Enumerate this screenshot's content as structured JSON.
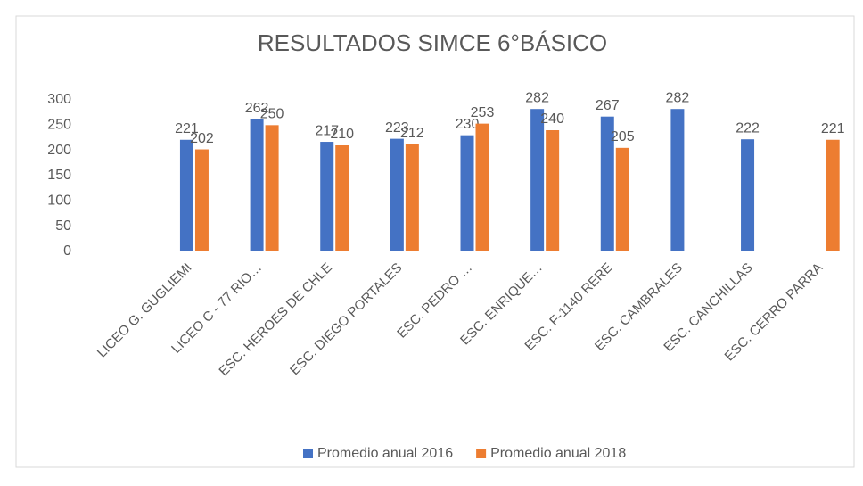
{
  "chart_data": {
    "type": "bar",
    "title": "RESULTADOS SIMCE 6°BÁSICO",
    "categories": [
      null,
      "LICEO G. GUGLIEMI",
      "LICEO C - 77 RIO…",
      "ESC. HEROES DE CHLE",
      "ESC. DIEGO PORTALES",
      "ESC. PEDRO …",
      "ESC.  ENRIQUE…",
      "ESC. F-1140  RERE",
      "ESC. CAMBRALES",
      "ESC. CANCHILLAS",
      "ESC. CERRO PARRA"
    ],
    "series": [
      {
        "name": "Promedio anual 2016",
        "color": "#4472c4",
        "values": [
          null,
          221,
          262,
          217,
          223,
          230,
          282,
          267,
          282,
          222,
          null
        ]
      },
      {
        "name": "Promedio anual 2018",
        "color": "#ed7d31",
        "values": [
          null,
          202,
          250,
          210,
          212,
          253,
          240,
          205,
          null,
          null,
          221
        ]
      }
    ],
    "ylim": [
      0,
      300
    ],
    "yticks": [
      0,
      50,
      100,
      150,
      200,
      250,
      300
    ],
    "legend": "bottom"
  }
}
